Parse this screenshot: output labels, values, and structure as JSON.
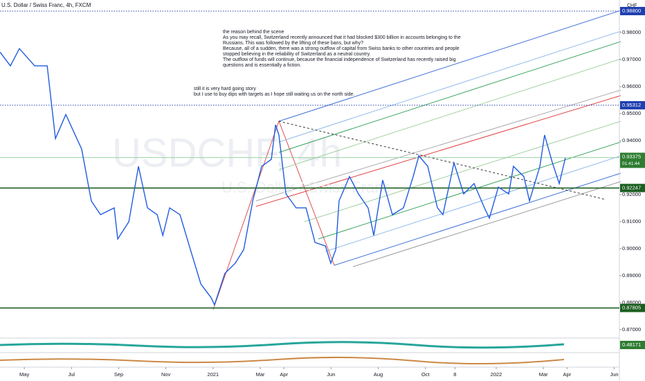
{
  "chart_data": {
    "type": "line",
    "title": "U.S. Dollar / Swiss Franc, 4h, FXCM",
    "currency": "CHF",
    "watermark": "USDCHF, 4h",
    "watermark_sub": "U.S. Dollar / Swiss Franc",
    "notes": [
      "the reason behind the scene",
      "As you may recall, Switzerland recently announced that it had blocked $300 billion in accounts belonging to the",
      "Russians. This was followed by the lifting of these bans, but why?",
      "Because, all of a sudden, there was a strong outflow of capital from Swiss banks to other countries and people",
      "stopped believing in the reliability of Switzerland as a neutral country.",
      "The outflow of funds will continue, because the financial independence of Switzerland has recently raised big",
      "questions and is essentially a fiction."
    ],
    "notes2": [
      "still it is very hard going story",
      "but I use to buy dips with targets as I hope still waiting us on the north side."
    ],
    "x": [
      -1.03,
      -0.59,
      -0.21,
      0.44,
      0.97,
      1.32,
      1.76,
      2.43,
      2.84,
      3.23,
      3.81,
      3.96,
      4.43,
      4.84,
      5.22,
      5.63,
      5.87,
      6.16,
      6.6,
      7.04,
      7.48,
      7.92,
      8.06,
      8.5,
      8.94,
      9.3,
      9.68,
      10.06,
      10.47,
      10.65,
      10.79,
      11.09,
      11.52,
      11.94,
      12.32,
      12.76,
      12.99,
      13.2,
      13.34,
      13.78,
      14.16,
      14.57,
      14.81,
      15.19,
      15.6,
      16.07,
      16.48,
      16.72,
      17.1,
      17.51,
      17.74,
      18.21,
      18.62,
      19.06,
      19.5,
      19.71,
      20.09,
      20.53,
      20.73,
      21.17,
      21.41,
      21.85,
      22.05,
      22.38,
      22.67,
      22.93
    ],
    "series": [
      {
        "color": "#1f5be0",
        "values": [
          0.9728,
          0.9677,
          0.9741,
          0.9677,
          0.9677,
          0.9408,
          0.9497,
          0.9369,
          0.9177,
          0.9126,
          0.9151,
          0.9036,
          0.91,
          0.9305,
          0.9151,
          0.9126,
          0.9049,
          0.9151,
          0.9126,
          0.8997,
          0.8869,
          0.8818,
          0.8792,
          0.8908,
          0.8946,
          0.8997,
          0.9177,
          0.9305,
          0.9331,
          0.9459,
          0.9421,
          0.9203,
          0.9151,
          0.9151,
          0.9023,
          0.901,
          0.8946,
          0.8997,
          0.9177,
          0.9267,
          0.9203,
          0.9151,
          0.9049,
          0.9254,
          0.9126,
          0.9151,
          0.9267,
          0.9344,
          0.9305,
          0.9151,
          0.9126,
          0.9318,
          0.9203,
          0.9241,
          0.9151,
          0.9113,
          0.9228,
          0.9203,
          0.9305,
          0.9267,
          0.9177,
          0.9305,
          0.9421,
          0.9318,
          0.9241,
          0.9336
        ]
      }
    ],
    "xlim": [
      -1.03,
      25.22
    ],
    "xticks": [
      {
        "value": 0,
        "label": "May"
      },
      {
        "value": 2,
        "label": "Jul"
      },
      {
        "value": 4,
        "label": "Sep"
      },
      {
        "value": 6,
        "label": "Nov"
      },
      {
        "value": 8,
        "label": "2021"
      },
      {
        "value": 10,
        "label": "Mar"
      },
      {
        "value": 11,
        "label": "Apr"
      },
      {
        "value": 13,
        "label": "Jun"
      },
      {
        "value": 15,
        "label": "Aug"
      },
      {
        "value": 17,
        "label": "Oct"
      },
      {
        "value": 18.25,
        "label": "8"
      },
      {
        "value": 20,
        "label": "2022"
      },
      {
        "value": 22,
        "label": "Mar"
      },
      {
        "value": 23,
        "label": "Apr"
      },
      {
        "value": 25,
        "label": "Jun"
      }
    ],
    "ylim": [
      0.8669,
      0.9921
    ],
    "yticks": [
      {
        "value": 0.98,
        "label": "0.98000"
      },
      {
        "value": 0.97,
        "label": "0.97000"
      },
      {
        "value": 0.96,
        "label": "0.96000"
      },
      {
        "value": 0.95,
        "label": "0.95000"
      },
      {
        "value": 0.94,
        "label": "0.94000"
      },
      {
        "value": 0.92,
        "label": "0.92000"
      },
      {
        "value": 0.91,
        "label": "0.91000"
      },
      {
        "value": 0.9,
        "label": "0.90000"
      },
      {
        "value": 0.89,
        "label": "0.89000"
      },
      {
        "value": 0.88,
        "label": "0.88000"
      },
      {
        "value": 0.87,
        "label": "0.87000"
      }
    ],
    "levels": [
      {
        "value": 0.988,
        "label": "0.98800",
        "color": "#1f3fb0",
        "style": "dotted"
      },
      {
        "value": 0.95312,
        "color": "#1f3fb0",
        "style": "dotted"
      },
      {
        "value": 0.92247,
        "color": "#1b5e20",
        "style": "solid"
      },
      {
        "value": 0.87805,
        "color": "#1b5e20",
        "style": "solid"
      }
    ],
    "last_price": 0.93375,
    "countdown": "01:41:44",
    "indicator_value": 0.48171
  }
}
